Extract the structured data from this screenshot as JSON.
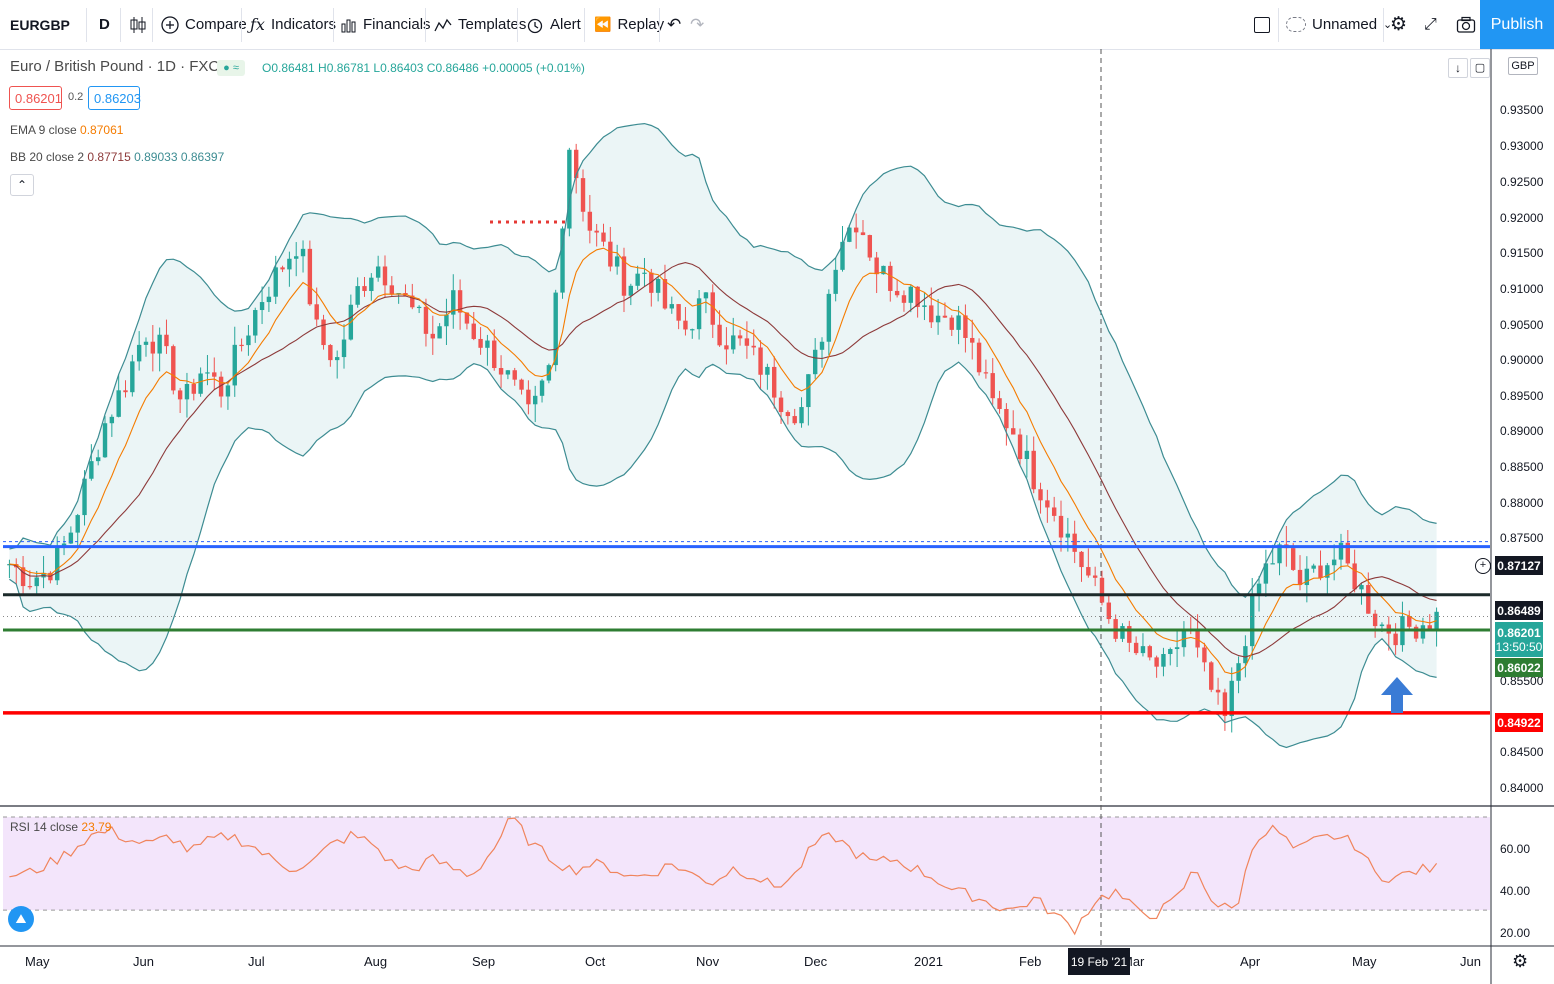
{
  "toolbar": {
    "symbol": "EURGBP",
    "interval": "D",
    "compare": "Compare",
    "indicators": "Indicators",
    "financials": "Financials",
    "templates": "Templates",
    "alert": "Alert",
    "replay": "Replay",
    "layout_name": "Unnamed",
    "publish": "Publish"
  },
  "legend": {
    "title": "Euro / British Pound · 1D · FXCM",
    "ohlc": "O0.86481 H0.86781 L0.86403 C0.86486 +0.00005 (+0.01%)",
    "sell_price": "0.86201",
    "spread": "0.2",
    "buy_price": "0.86203",
    "ema_label": "EMA 9 close",
    "ema_value": "0.87061",
    "bb_label": "BB 20 close 2",
    "bb_basis": "0.87715",
    "bb_upper": "0.89033",
    "bb_lower": "0.86397",
    "rsi_label": "RSI 14 close",
    "rsi_value": "23.79"
  },
  "axis": {
    "currency": "GBP",
    "y_labels": [
      "0.93500",
      "0.93000",
      "0.92500",
      "0.92000",
      "0.91500",
      "0.91000",
      "0.90500",
      "0.90000",
      "0.89500",
      "0.89000",
      "0.88500",
      "0.88000",
      "0.87500",
      "0.85500",
      "0.84500",
      "0.84000"
    ],
    "rsi_labels": [
      "60.00",
      "40.00",
      "20.00"
    ],
    "x_labels": [
      "May",
      "Jun",
      "Jul",
      "Aug",
      "Sep",
      "Oct",
      "Nov",
      "Dec",
      "2021",
      "Feb",
      "Mar",
      "Apr",
      "May",
      "Jun"
    ],
    "crosshair_date": "19 Feb '21"
  },
  "levels": {
    "blue": "0.87127",
    "black": "0.86489",
    "last": "0.86201",
    "countdown": "13:50:50",
    "green": "0.86022",
    "red": "0.84922"
  },
  "colors": {
    "up": "#26a69a",
    "down": "#ef5350",
    "ema": "#f57c00",
    "bb_basis": "#8d3a3a",
    "bb_band": "#3d8c92",
    "blue_line": "#2962ff",
    "green_line": "#2e7d32",
    "red_line": "#ff0000",
    "rsi": "#f0845c"
  },
  "chart_data": {
    "type": "candlestick",
    "symbol": "EURGBP",
    "timeframe": "1D",
    "ylim": [
      0.837,
      0.9365
    ],
    "horizontal_levels": [
      0.87127,
      0.86489,
      0.86022,
      0.84922
    ],
    "rsi_ylim": [
      15,
      73
    ],
    "rsi_band": [
      30,
      70
    ],
    "x_months": [
      "May",
      "Jun",
      "Jul",
      "Aug",
      "Sep",
      "Oct",
      "Nov",
      "Dec",
      "2021",
      "Feb",
      "Mar",
      "Apr",
      "May",
      "Jun"
    ],
    "price_path": [
      0.869,
      0.867,
      0.868,
      0.872,
      0.88,
      0.888,
      0.893,
      0.9,
      0.897,
      0.89,
      0.895,
      0.892,
      0.898,
      0.904,
      0.908,
      0.912,
      0.899,
      0.896,
      0.905,
      0.909,
      0.906,
      0.902,
      0.899,
      0.904,
      0.9,
      0.897,
      0.893,
      0.888,
      0.895,
      0.925,
      0.914,
      0.91,
      0.906,
      0.908,
      0.903,
      0.9,
      0.904,
      0.899,
      0.898,
      0.895,
      0.891,
      0.889,
      0.898,
      0.912,
      0.915,
      0.908,
      0.906,
      0.905,
      0.902,
      0.902,
      0.897,
      0.89,
      0.887,
      0.881,
      0.877,
      0.872,
      0.867,
      0.862,
      0.858,
      0.856,
      0.855,
      0.861,
      0.854,
      0.848,
      0.859,
      0.868,
      0.871,
      0.866,
      0.869,
      0.87,
      0.866,
      0.861,
      0.86,
      0.861,
      0.862
    ],
    "rsi_path": [
      45,
      46,
      50,
      55,
      62,
      64,
      60,
      58,
      62,
      55,
      60,
      62,
      58,
      52,
      48,
      50,
      58,
      62,
      59,
      50,
      47,
      52,
      48,
      45,
      55,
      70,
      58,
      52,
      47,
      50,
      48,
      44,
      46,
      50,
      45,
      42,
      48,
      45,
      40,
      44,
      58,
      62,
      55,
      50,
      52,
      48,
      44,
      38,
      36,
      32,
      30,
      35,
      28,
      22,
      34,
      38,
      30,
      28,
      34,
      48,
      32,
      30,
      62,
      65,
      55,
      60,
      62,
      58,
      45,
      44,
      47,
      48
    ]
  }
}
